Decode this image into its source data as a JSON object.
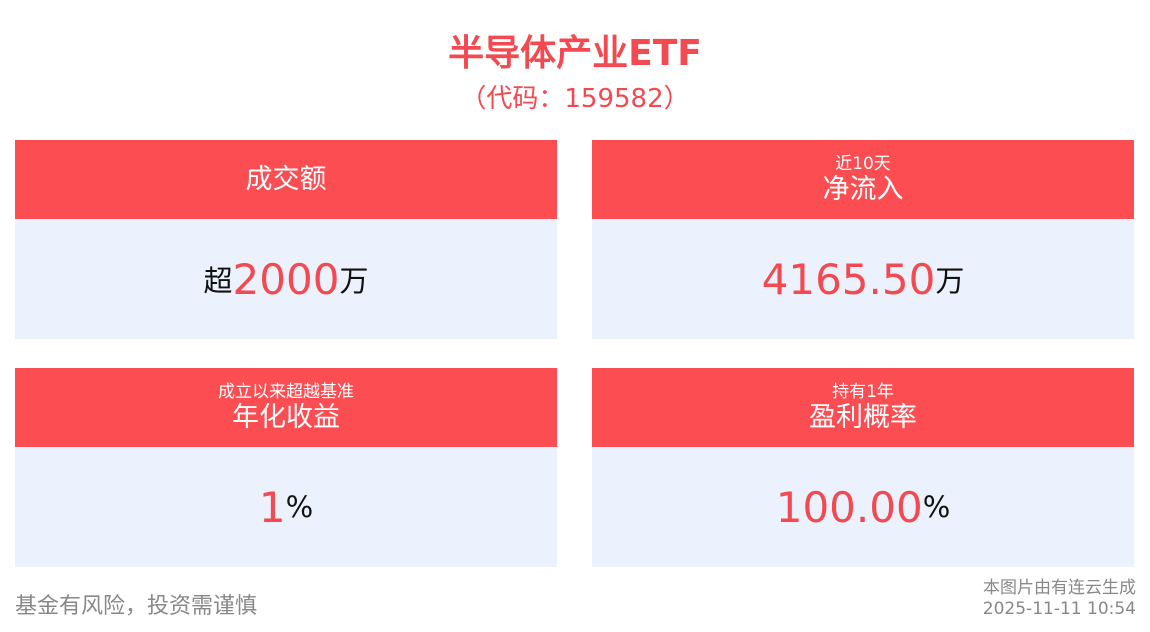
{
  "header": {
    "title": "半导体产业ETF",
    "code": "（代码：159582）"
  },
  "cards": [
    {
      "title": "成交额",
      "prefix": "超",
      "value": "2000",
      "unit": "万"
    },
    {
      "subtitle": "近10天",
      "title": "净流入",
      "value": "4165.50",
      "unit": "万"
    },
    {
      "subtitle": "成立以来超越基准",
      "title": "年化收益",
      "value": "1",
      "unit": "%"
    },
    {
      "subtitle": "持有1年",
      "title": "盈利概率",
      "value": "100.00",
      "unit": "%"
    }
  ],
  "footer": {
    "disclaimer": "基金有风险，投资需谨慎",
    "source": "本图片由有连云生成",
    "timestamp": "2025-11-11 10:54"
  }
}
